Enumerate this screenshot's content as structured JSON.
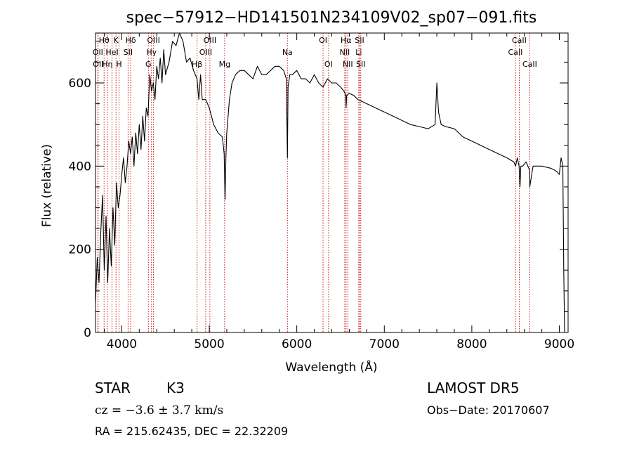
{
  "chart_data": {
    "type": "line",
    "title": "spec−57912−HD141501N234109V02_sp07−091.fits",
    "xlabel": "Wavelength (Å)",
    "ylabel": "Flux (relative)",
    "xlim": [
      3700,
      9100
    ],
    "ylim": [
      0,
      720
    ],
    "x_ticks": [
      4000,
      5000,
      6000,
      7000,
      8000,
      9000
    ],
    "x_tick_labels": [
      "4000",
      "5000",
      "6000",
      "7000",
      "8000",
      "9000"
    ],
    "y_ticks": [
      0,
      200,
      400,
      600
    ],
    "y_tick_labels": [
      "0",
      "200",
      "400",
      "600"
    ],
    "grid": false,
    "series": [
      {
        "name": "",
        "color": "#000000",
        "x": [
          3700,
          3720,
          3740,
          3760,
          3780,
          3800,
          3820,
          3840,
          3860,
          3880,
          3900,
          3920,
          3940,
          3960,
          3980,
          4000,
          4020,
          4040,
          4060,
          4080,
          4100,
          4120,
          4140,
          4160,
          4180,
          4200,
          4220,
          4240,
          4260,
          4280,
          4300,
          4320,
          4340,
          4360,
          4380,
          4400,
          4420,
          4440,
          4460,
          4480,
          4500,
          4540,
          4580,
          4620,
          4660,
          4700,
          4740,
          4780,
          4820,
          4860,
          4880,
          4900,
          4920,
          4960,
          5000,
          5050,
          5100,
          5150,
          5170,
          5180,
          5190,
          5200,
          5230,
          5260,
          5300,
          5350,
          5400,
          5450,
          5500,
          5550,
          5600,
          5650,
          5700,
          5750,
          5800,
          5850,
          5880,
          5893,
          5900,
          5920,
          5950,
          6000,
          6050,
          6100,
          6150,
          6200,
          6250,
          6300,
          6350,
          6400,
          6450,
          6500,
          6540,
          6560,
          6563,
          6570,
          6600,
          6650,
          6700,
          6750,
          6800,
          6850,
          6900,
          6950,
          7000,
          7100,
          7200,
          7300,
          7400,
          7500,
          7580,
          7600,
          7620,
          7640,
          7650,
          7700,
          7800,
          7900,
          8000,
          8100,
          8200,
          8300,
          8400,
          8480,
          8500,
          8520,
          8540,
          8550,
          8560,
          8580,
          8620,
          8660,
          8662,
          8700,
          8800,
          8900,
          8950,
          8980,
          9000,
          9020,
          9040,
          9050,
          9060
        ],
        "y": [
          70,
          180,
          120,
          240,
          330,
          150,
          280,
          120,
          250,
          160,
          300,
          210,
          360,
          300,
          330,
          380,
          420,
          360,
          400,
          460,
          430,
          470,
          400,
          480,
          430,
          500,
          440,
          520,
          460,
          540,
          520,
          620,
          580,
          600,
          560,
          640,
          610,
          660,
          600,
          680,
          620,
          650,
          700,
          690,
          720,
          700,
          650,
          660,
          630,
          610,
          560,
          620,
          560,
          560,
          540,
          500,
          480,
          470,
          430,
          320,
          420,
          480,
          560,
          600,
          620,
          630,
          630,
          620,
          610,
          640,
          620,
          620,
          630,
          640,
          640,
          630,
          610,
          420,
          590,
          620,
          620,
          630,
          610,
          610,
          600,
          620,
          600,
          590,
          610,
          600,
          600,
          590,
          580,
          570,
          540,
          570,
          575,
          570,
          560,
          555,
          550,
          545,
          540,
          535,
          530,
          520,
          510,
          500,
          495,
          490,
          500,
          600,
          530,
          510,
          500,
          495,
          490,
          470,
          460,
          450,
          440,
          430,
          420,
          410,
          400,
          420,
          400,
          350,
          400,
          400,
          410,
          390,
          350,
          400,
          400,
          395,
          390,
          385,
          380,
          420,
          400,
          150,
          0
        ]
      }
    ],
    "spectral_lines": [
      {
        "wavelength": 3727,
        "label": "OII",
        "row": 1
      },
      {
        "wavelength": 3730,
        "label": "OII",
        "row": 2
      },
      {
        "wavelength": 3798,
        "label": "Hθ",
        "row": 0
      },
      {
        "wavelength": 3835,
        "label": "Hη",
        "row": 2
      },
      {
        "wavelength": 3889,
        "label": "HeI",
        "row": 1
      },
      {
        "wavelength": 3934,
        "label": "K",
        "row": 0
      },
      {
        "wavelength": 3969,
        "label": "H",
        "row": 2
      },
      {
        "wavelength": 4072,
        "label": "SII",
        "row": 1
      },
      {
        "wavelength": 4102,
        "label": "Hδ",
        "row": 0
      },
      {
        "wavelength": 4304,
        "label": "G",
        "row": 2
      },
      {
        "wavelength": 4340,
        "label": "Hγ",
        "row": 1
      },
      {
        "wavelength": 4363,
        "label": "OIII",
        "row": 0
      },
      {
        "wavelength": 4861,
        "label": "Hβ",
        "row": 2
      },
      {
        "wavelength": 4959,
        "label": "OIII",
        "row": 1
      },
      {
        "wavelength": 5007,
        "label": "OIII",
        "row": 0
      },
      {
        "wavelength": 5175,
        "label": "Mg",
        "row": 2
      },
      {
        "wavelength": 5893,
        "label": "Na",
        "row": 1
      },
      {
        "wavelength": 6300,
        "label": "OI",
        "row": 0
      },
      {
        "wavelength": 6363,
        "label": "OI",
        "row": 2
      },
      {
        "wavelength": 6548,
        "label": "NII",
        "row": 1
      },
      {
        "wavelength": 6563,
        "label": "Hα",
        "row": 0
      },
      {
        "wavelength": 6583,
        "label": "NII",
        "row": 2
      },
      {
        "wavelength": 6708,
        "label": "Li",
        "row": 1
      },
      {
        "wavelength": 6717,
        "label": "SII",
        "row": 0
      },
      {
        "wavelength": 6731,
        "label": "SII",
        "row": 2
      },
      {
        "wavelength": 8498,
        "label": "CaII",
        "row": 1
      },
      {
        "wavelength": 8542,
        "label": "CaII",
        "row": 0
      },
      {
        "wavelength": 8662,
        "label": "CaII",
        "row": 2
      }
    ]
  },
  "info": {
    "object_class": "STAR",
    "subclass": "K3",
    "cz": "cz = −3.6 ± 3.7 km/s",
    "coords": "RA = 215.62435, DEC =  22.32209",
    "survey": "LAMOST DR5",
    "obs_date": "Obs−Date: 20170607"
  },
  "colors": {
    "spectrum": "#000000",
    "line_markers": "#cc0000",
    "axes": "#000000"
  }
}
